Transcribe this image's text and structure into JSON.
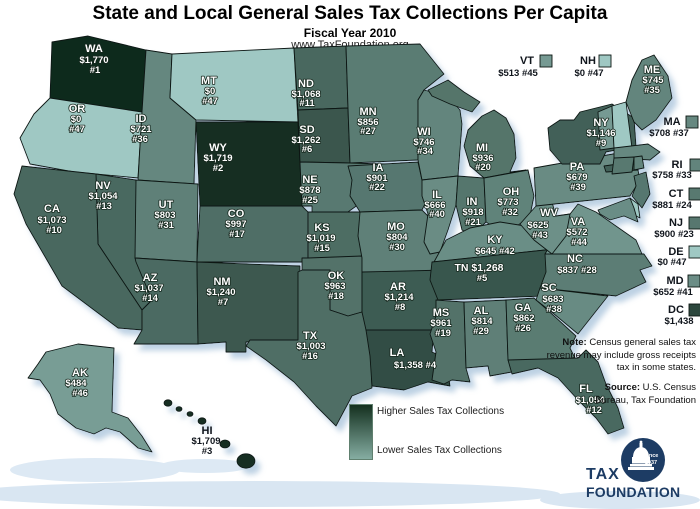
{
  "title": "State and Local General Sales Tax Collections Per Capita",
  "subtitle": "Fiscal Year 2010",
  "url": "www.TaxFoundation.org",
  "legend": {
    "high_label": "Higher Sales Tax Collections",
    "low_label": "Lower Sales Tax Collections",
    "top_color": "#14301f",
    "bottom_color": "#85ada2"
  },
  "note": {
    "prefix": "Note:",
    "line1": "Census general sales tax",
    "line2": "revenue may include gross receipts",
    "line3": "tax in some states."
  },
  "source": {
    "prefix": "Source:",
    "line1": "U.S. Census",
    "line2": "Bureau, Tax Foundation"
  },
  "logo": {
    "line1": "TAX",
    "line2": "FOUNDATION",
    "badge_line1": "Since",
    "badge_line2": "1937",
    "color": "#1d3c64"
  },
  "states": {
    "WA": {
      "name": "WA",
      "value": "$1,770",
      "rank": "#1",
      "color": "#112a1e"
    },
    "OR": {
      "name": "OR",
      "value": "$0",
      "rank": "#47",
      "color": "#9fc8c3"
    },
    "CA": {
      "name": "CA",
      "value": "$1,073",
      "rank": "#10",
      "color": "#49685f"
    },
    "NV": {
      "name": "NV",
      "value": "$1,054",
      "rank": "#13",
      "color": "#4a6960"
    },
    "ID": {
      "name": "ID",
      "value": "$721",
      "rank": "#36",
      "color": "#65877f"
    },
    "MT": {
      "name": "MT",
      "value": "$0",
      "rank": "#47",
      "color": "#9fc8c3"
    },
    "WY": {
      "name": "WY",
      "value": "$1,719",
      "rank": "#2",
      "color": "#152e23"
    },
    "UT": {
      "name": "UT",
      "value": "$803",
      "rank": "#31",
      "color": "#5f8078"
    },
    "AZ": {
      "name": "AZ",
      "value": "$1,037",
      "rank": "#14",
      "color": "#4c6b62"
    },
    "CO": {
      "name": "CO",
      "value": "$997",
      "rank": "#17",
      "color": "#4f6e66"
    },
    "NM": {
      "name": "NM",
      "value": "$1,240",
      "rank": "#7",
      "color": "#3c594f"
    },
    "ND": {
      "name": "ND",
      "value": "$1,068",
      "rank": "#11",
      "color": "#49685f"
    },
    "SD": {
      "name": "SD",
      "value": "$1,262",
      "rank": "#6",
      "color": "#3a574d"
    },
    "NE": {
      "name": "NE",
      "value": "$878",
      "rank": "#25",
      "color": "#597971"
    },
    "KS": {
      "name": "KS",
      "value": "$1,019",
      "rank": "#15",
      "color": "#4d6d64"
    },
    "OK": {
      "name": "OK",
      "value": "$963",
      "rank": "#18",
      "color": "#527269"
    },
    "TX": {
      "name": "TX",
      "value": "$1,003",
      "rank": "#16",
      "color": "#4f6e65"
    },
    "MN": {
      "name": "MN",
      "value": "$856",
      "rank": "#27",
      "color": "#5a7b73"
    },
    "IA": {
      "name": "IA",
      "value": "$901",
      "rank": "#22",
      "color": "#57776f"
    },
    "MO": {
      "name": "MO",
      "value": "$804",
      "rank": "#30",
      "color": "#5f8078"
    },
    "AR": {
      "name": "AR",
      "value": "$1,214",
      "rank": "#8",
      "color": "#3e5b52"
    },
    "LA": {
      "name": "LA",
      "value": "$1,358",
      "rank": "#4",
      "color": "#324e44"
    },
    "WI": {
      "name": "WI",
      "value": "$746",
      "rank": "#34",
      "color": "#63857d"
    },
    "IL": {
      "name": "IL",
      "value": "$666",
      "rank": "#40",
      "color": "#6a8c84"
    },
    "IN": {
      "name": "IN",
      "value": "$918",
      "rank": "#21",
      "color": "#55766d"
    },
    "MI": {
      "name": "MI",
      "value": "$936",
      "rank": "#20",
      "color": "#54746b"
    },
    "OH": {
      "name": "OH",
      "value": "$773",
      "rank": "#32",
      "color": "#61837a"
    },
    "KY": {
      "name": "KY",
      "value": "$645",
      "rank": "#42",
      "color": "#6b8e86"
    },
    "TN": {
      "name": "TN",
      "value": "$1,268",
      "rank": "#5",
      "color": "#39564d"
    },
    "MS": {
      "name": "MS",
      "value": "$961",
      "rank": "#19",
      "color": "#527269"
    },
    "AL": {
      "name": "AL",
      "value": "$814",
      "rank": "#29",
      "color": "#5e7f77"
    },
    "GA": {
      "name": "GA",
      "value": "$862",
      "rank": "#26",
      "color": "#5a7b72"
    },
    "FL": {
      "name": "FL",
      "value": "$1,054",
      "rank": "#12",
      "color": "#4a6960"
    },
    "SC": {
      "name": "SC",
      "value": "$683",
      "rank": "#38",
      "color": "#688b83"
    },
    "NC": {
      "name": "NC",
      "value": "$837",
      "rank": "#28",
      "color": "#5c7d74"
    },
    "VA": {
      "name": "VA",
      "value": "$572",
      "rank": "#44",
      "color": "#71958d"
    },
    "WV": {
      "name": "WV",
      "value": "$625",
      "rank": "#43",
      "color": "#6d9088"
    },
    "PA": {
      "name": "PA",
      "value": "$679",
      "rank": "#39",
      "color": "#698b83"
    },
    "NY": {
      "name": "NY",
      "value": "$1,146",
      "rank": "#9",
      "color": "#436158"
    },
    "ME": {
      "name": "ME",
      "value": "$745",
      "rank": "#35",
      "color": "#63857d"
    },
    "VT": {
      "name": "VT",
      "value": "$513",
      "rank": "#45",
      "color": "#769a93"
    },
    "NH": {
      "name": "NH",
      "value": "$0",
      "rank": "#47",
      "color": "#9fc8c3"
    },
    "MA": {
      "name": "MA",
      "value": "$708",
      "rank": "#37",
      "color": "#668880"
    },
    "RI": {
      "name": "RI",
      "value": "$758",
      "rank": "#33",
      "color": "#62847c"
    },
    "CT": {
      "name": "CT",
      "value": "$881",
      "rank": "#24",
      "color": "#587970"
    },
    "NJ": {
      "name": "NJ",
      "value": "$900",
      "rank": "#23",
      "color": "#57776f"
    },
    "DE": {
      "name": "DE",
      "value": "$0",
      "rank": "#47",
      "color": "#9fc8c3"
    },
    "MD": {
      "name": "MD",
      "value": "$652",
      "rank": "#41",
      "color": "#6b8d86"
    },
    "DC": {
      "name": "DC",
      "value": "$1,438",
      "rank": "",
      "color": "#2c473d"
    },
    "AK": {
      "name": "AK",
      "value": "$484",
      "rank": "#46",
      "color": "#789d95"
    },
    "HI": {
      "name": "HI",
      "value": "$1,709",
      "rank": "#3",
      "color": "#162f24"
    }
  }
}
